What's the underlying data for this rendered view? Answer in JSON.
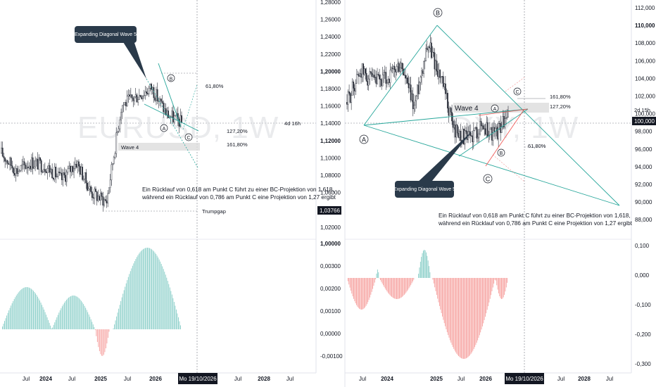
{
  "left_panel": {
    "watermark": "EURUSD, 1W",
    "price_axis_labels": [
      "1,28000",
      "1,26000",
      "1,24000",
      "1,22000",
      "1,20000",
      "1,18000",
      "1,16000",
      "1,14000",
      "1,12000",
      "1,10000",
      "1,08000",
      "1,06000",
      "1,04000",
      "1,02000"
    ],
    "last_price_badge": "1,03766",
    "countdown": "4d 16h",
    "osc_axis_labels": [
      "1,00000",
      "0,00300",
      "0,00200",
      "0,00100",
      "0,00000",
      "-0,00100"
    ],
    "callout": "Expanding Diagonal Wave 5",
    "wave4_label": "Wave 4",
    "fib_labels": [
      "61,80%",
      "127,20%",
      "161,80%"
    ],
    "wave_points": [
      "B",
      "A",
      "C"
    ],
    "trump_gap": "Trumpgap",
    "note_lines": [
      "Ein Rücklauf von 0,618 am Punkt C führt zu einer BC-Projektion von 1,618,",
      "während ein Rücklauf von 0,786 am Punkt C eine Projektion von 1,27 ergibt"
    ],
    "time_labels": [
      "Jul",
      "2024",
      "Jul",
      "2025",
      "Jul",
      "2026",
      "Jul",
      "2028",
      "Jul"
    ],
    "time_badge": "Mo 19/10/2026"
  },
  "right_panel": {
    "watermark": "DXY, 1W",
    "price_axis_labels": [
      "112,000",
      "110,000",
      "108,000",
      "106,000",
      "104,000",
      "102,000",
      "100,000",
      "98,000",
      "96,000",
      "94,000",
      "92,000",
      "90,000",
      "88,000"
    ],
    "last_price_badge": "100,000",
    "countdown": "2d 15h",
    "osc_axis_labels": [
      "0,100",
      "0,000",
      "-0,100",
      "-0,200",
      "-0,300"
    ],
    "callout": "Expanding Diagonal Wave 5",
    "wave4_label": "Wave 4",
    "fib_labels": [
      "161,80%",
      "127,20%",
      "61,80%"
    ],
    "wave_points": [
      "A",
      "B",
      "C",
      "A",
      "B",
      "C"
    ],
    "note_lines": [
      "Ein Rücklauf von 0,618 am Punkt C führt zu einer BC-Projektion von 1,618,",
      "während ein Rücklauf von 0,786 am Punkt C eine Projektion von 1,27 ergibt"
    ],
    "time_labels": [
      "Jul",
      "2024",
      "2025",
      "Jul",
      "2026",
      "Jul",
      "2028",
      "Jul"
    ],
    "time_badge": "Mo 19/10/2026"
  },
  "colors": {
    "candle": "#2a2e39",
    "channel": "#26a69a",
    "fib_red": "#ef5350",
    "osc_up": "#26a69a",
    "osc_down": "#ef5350",
    "callout_bg": "#2a3a4a",
    "badge": "#131722"
  },
  "chart_data": [
    {
      "type": "line",
      "symbol": "EURUSD",
      "timeframe": "1W",
      "x": [
        "2023-06",
        "2023-09",
        "2023-12",
        "2024-03",
        "2024-06",
        "2024-09",
        "2024-12",
        "2025-03",
        "2025-06",
        "2025-09",
        "2025-12",
        "2026-03",
        "2026-06"
      ],
      "values": [
        1.105,
        1.085,
        1.095,
        1.09,
        1.075,
        1.095,
        1.06,
        1.05,
        1.16,
        1.17,
        1.18,
        1.15,
        1.14
      ],
      "last_price": 1.03766,
      "ylim": [
        1.015,
        1.28
      ]
    },
    {
      "type": "line",
      "symbol": "DXY",
      "timeframe": "1W",
      "x": [
        "2023-06",
        "2023-09",
        "2023-12",
        "2024-03",
        "2024-06",
        "2024-09",
        "2024-12",
        "2025-03",
        "2025-06",
        "2025-09",
        "2025-12",
        "2026-03",
        "2026-06"
      ],
      "values": [
        101.5,
        105.0,
        103.5,
        104.0,
        105.5,
        101.0,
        108.0,
        104.0,
        98.5,
        97.5,
        99.0,
        98.0,
        100.0
      ],
      "last_price": 100.0,
      "ylim": [
        87.5,
        112.5
      ]
    }
  ]
}
